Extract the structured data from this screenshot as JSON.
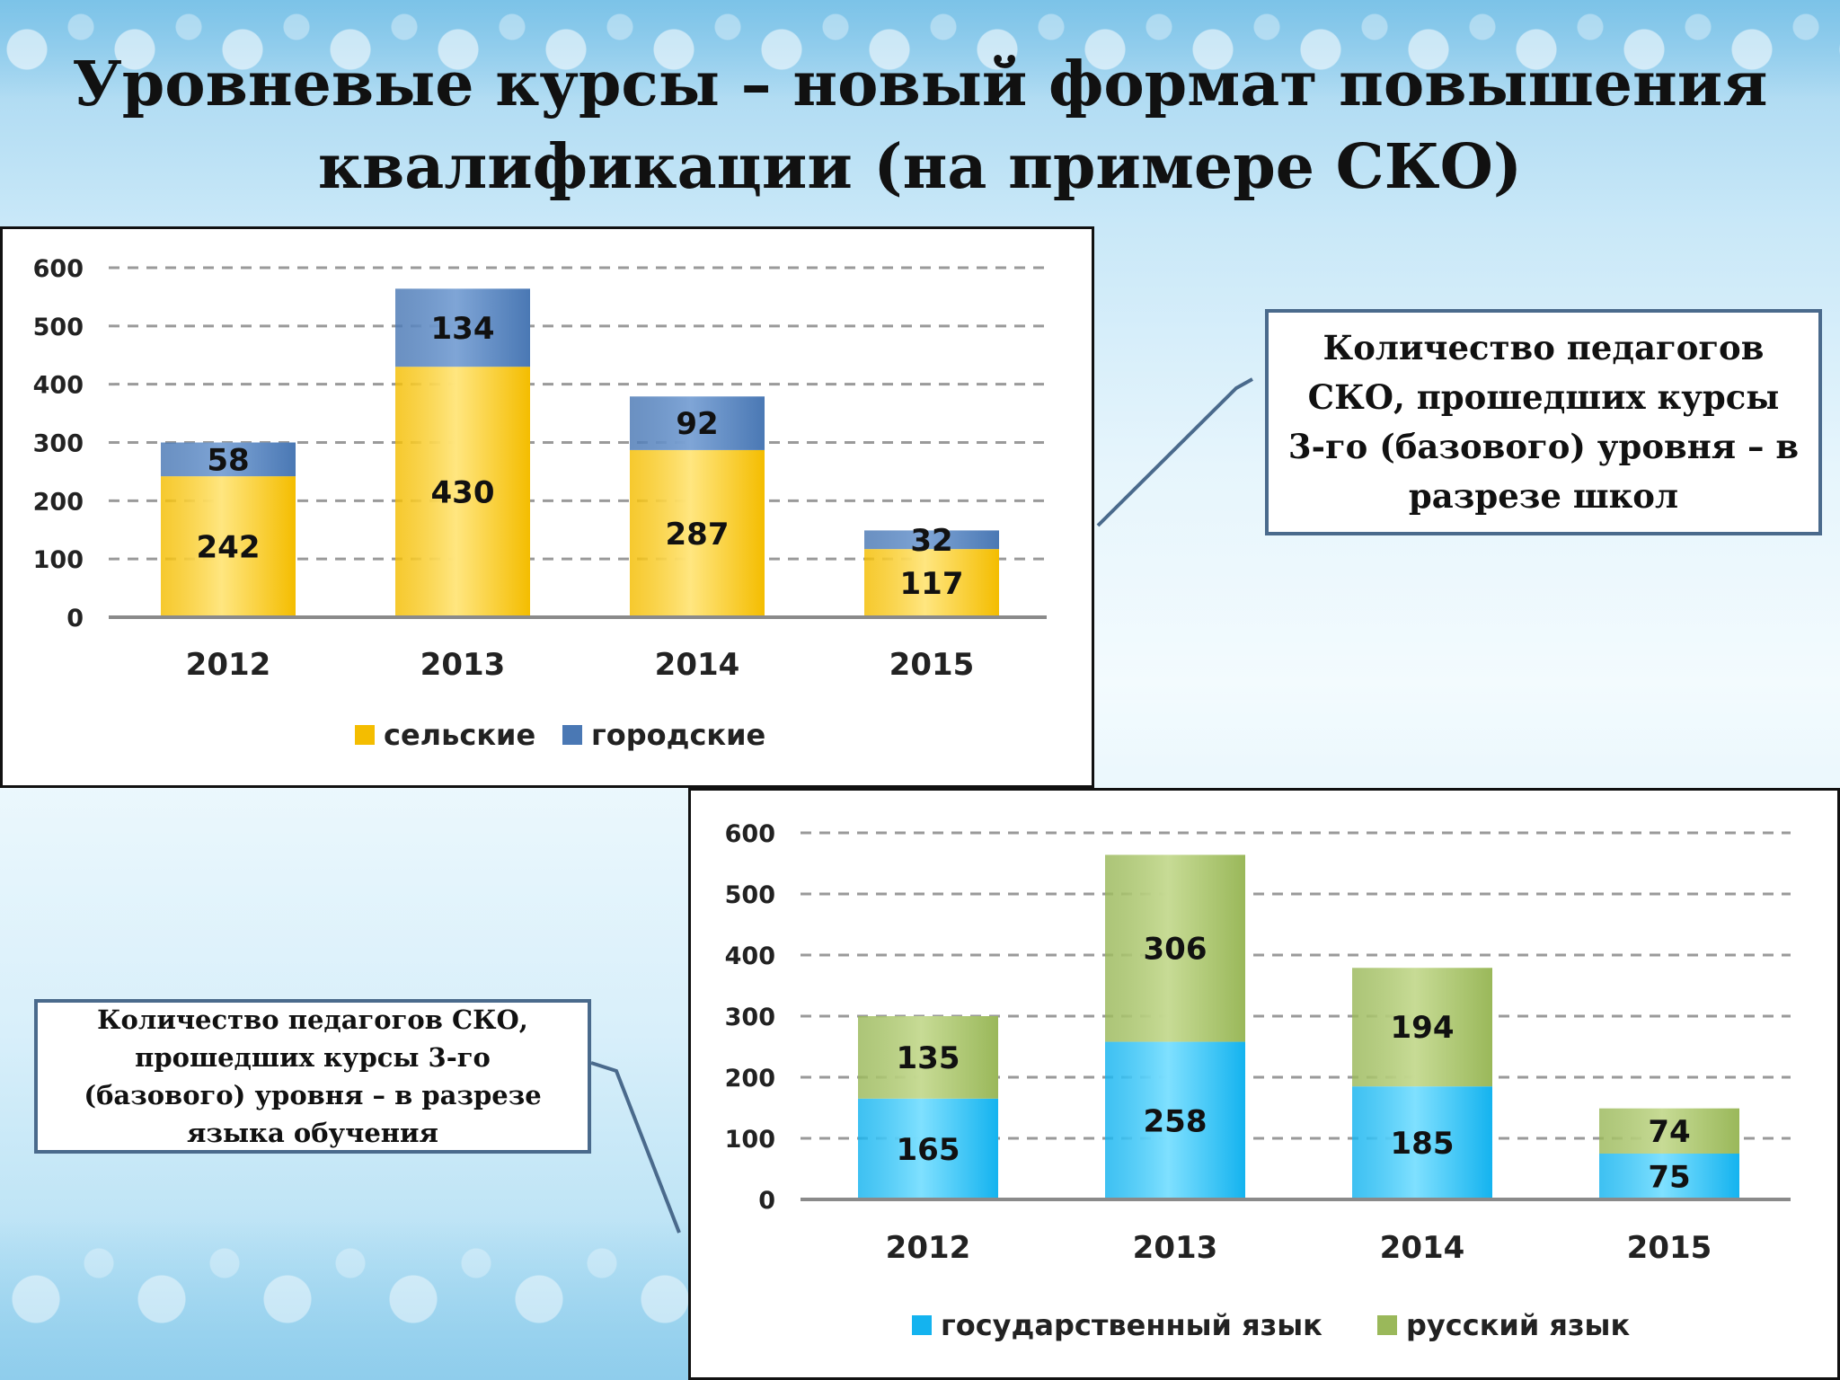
{
  "slide": {
    "title_line1": "Уровневые курсы – новый формат повышения",
    "title_line2": "квалификации (на примере СКО)"
  },
  "callouts": {
    "top_right": "Количество педагогов СКО, прошедших курсы 3-го (базового) уровня – в разрезе школ",
    "bottom_left": "Количество педагогов СКО, прошедших курсы 3-го (базового) уровня – в разрезе языка обучения"
  },
  "colors": {
    "rural": "#f4bd00",
    "urban": "#4a78b4",
    "state_lang": "#14b3ef",
    "russian_lang": "#9ab85a",
    "border": "#4a6a8c"
  },
  "chart_data": [
    {
      "type": "bar",
      "stacked": true,
      "categories": [
        "2012",
        "2013",
        "2014",
        "2015"
      ],
      "series": [
        {
          "name": "сельские",
          "values": [
            242,
            430,
            287,
            117
          ]
        },
        {
          "name": "городские",
          "values": [
            58,
            134,
            92,
            32
          ]
        }
      ],
      "ylim": [
        0,
        600
      ],
      "yticks": [
        "0",
        "100",
        "200",
        "300",
        "400",
        "500",
        "600"
      ],
      "grid": true,
      "legend": "bottom"
    },
    {
      "type": "bar",
      "stacked": true,
      "categories": [
        "2012",
        "2013",
        "2014",
        "2015"
      ],
      "series": [
        {
          "name": "государственный язык",
          "values": [
            165,
            258,
            185,
            75
          ]
        },
        {
          "name": "русский язык",
          "values": [
            135,
            306,
            194,
            74
          ]
        }
      ],
      "ylim": [
        0,
        600
      ],
      "yticks": [
        "0",
        "100",
        "200",
        "300",
        "400",
        "500",
        "600"
      ],
      "grid": true,
      "legend": "bottom"
    }
  ]
}
